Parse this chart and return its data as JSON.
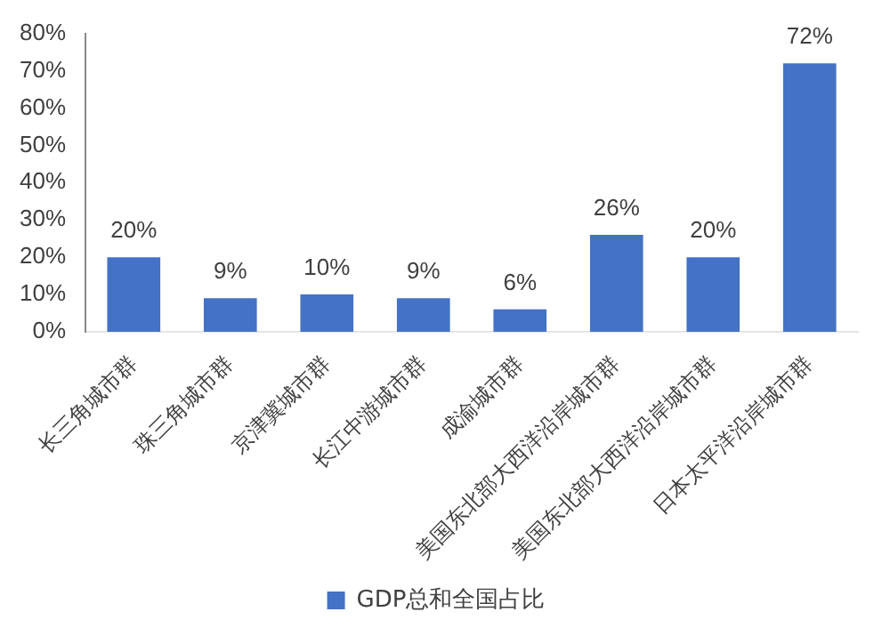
{
  "chart_data": {
    "type": "bar",
    "categories": [
      "长三角城市群",
      "珠三角城市群",
      "京津冀城市群",
      "长江中游城市群",
      "成渝城市群",
      "美国东北部大西洋沿岸城市群",
      "美国东北部大西洋沿岸城市群",
      "日本太平洋沿岸城市群"
    ],
    "series": [
      {
        "name": "GDP总和全国占比",
        "color": "#4472c4",
        "values": [
          20,
          9,
          10,
          9,
          6,
          26,
          20,
          72
        ],
        "value_labels": [
          "20%",
          "9%",
          "10%",
          "9%",
          "6%",
          "26%",
          "20%",
          "72%"
        ]
      }
    ],
    "ylim": [
      0,
      80
    ],
    "yticks": [
      {
        "value": 0,
        "label": "0%"
      },
      {
        "value": 10,
        "label": "10%"
      },
      {
        "value": 20,
        "label": "20%"
      },
      {
        "value": 30,
        "label": "30%"
      },
      {
        "value": 40,
        "label": "40%"
      },
      {
        "value": 50,
        "label": "50%"
      },
      {
        "value": 60,
        "label": "60%"
      },
      {
        "value": 70,
        "label": "70%"
      },
      {
        "value": 80,
        "label": "80%"
      }
    ],
    "grid": false,
    "legend": "bottom"
  }
}
